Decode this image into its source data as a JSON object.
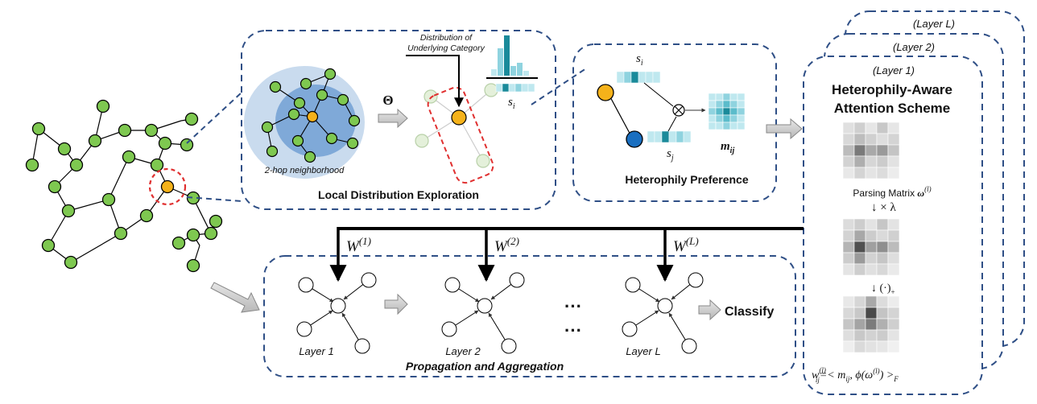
{
  "labels": {
    "distribution_line1": "Distribution of",
    "distribution_line2": "Underlying Category",
    "theta": "Θ",
    "two_hop": "2-hop neighborhood",
    "local_distribution": "Local Distribution Exploration",
    "s_i": "s",
    "s_i_sub": "i",
    "s_j": "s",
    "s_j_sub": "j",
    "m_ij": "m",
    "m_ij_sub": "ij",
    "heterophily_preference": "Heterophily Preference",
    "layer_L_card": "(Layer L)",
    "layer_2_card": "(Layer 2)",
    "layer_1_card": "(Layer 1)",
    "scheme_line1": "Heterophily-Aware",
    "scheme_line2": "Attention Scheme",
    "parsing_matrix": "Parsing Matrix",
    "parsing_omega": "ω",
    "parsing_sup": "(l)",
    "times_lambda": "↓ × λ",
    "relu_op": "↓    (·)",
    "relu_sub": "+",
    "formula_w": "w",
    "formula_sup": "(l)",
    "formula_sub": "ij",
    "formula_rest": "=< m",
    "formula_rest_sub": "ij",
    "formula_phi": ", ϕ(ω",
    "formula_phi_sup": "(l)",
    "formula_end": ") >",
    "formula_F": "F",
    "w1": "W",
    "w1_sup": "(1)",
    "w2": "W",
    "w2_sup": "(2)",
    "wL": "W",
    "wL_sup": "(L)",
    "layer1": "Layer 1",
    "layer2": "Layer 2",
    "layerL": "Layer L",
    "dots_top": "···",
    "dots_bottom": "···",
    "classify": "Classify",
    "propagation": "Propagation and Aggregation"
  },
  "colors": {
    "node_green": "#7ec850",
    "node_orange": "#f5b21a",
    "node_blue": "#1a6fc0",
    "dash_blue": "#2f4f86",
    "dash_red": "#e03030",
    "halo_outer": "#c9dbee",
    "halo_inner": "#7fa9d8",
    "teal_dark": "#1a8a9a",
    "teal_light": "#bfe8ef"
  }
}
